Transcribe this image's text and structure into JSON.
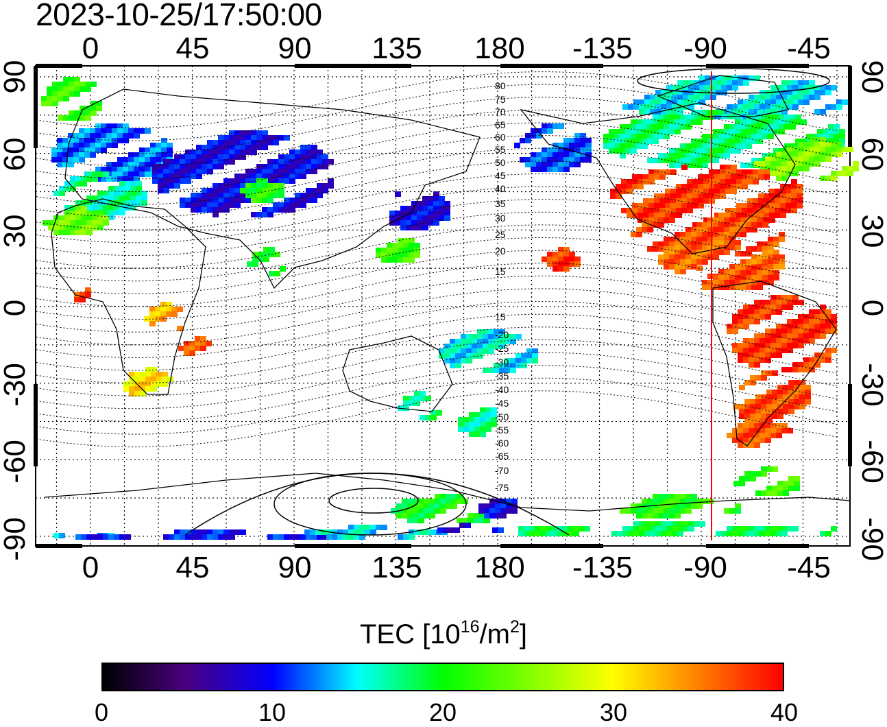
{
  "title": "2023-10-25/17:50:00",
  "map": {
    "top_axis_labels": [
      "0",
      "45",
      "90",
      "135",
      "180",
      "-135",
      "-90",
      "-45"
    ],
    "bottom_axis_labels": [
      "0",
      "45",
      "90",
      "135",
      "180",
      "-135",
      "-90",
      "-45"
    ],
    "left_axis_labels": [
      "90",
      "60",
      "30",
      "0",
      "-30",
      "-60",
      "-90"
    ],
    "right_axis_labels": [
      "90",
      "60",
      "30",
      "0",
      "-30",
      "-60",
      "-90"
    ],
    "contour_labels": [
      "80",
      "75",
      "70",
      "65",
      "60",
      "55",
      "50",
      "45",
      "40",
      "35",
      "30",
      "25",
      "20",
      "15",
      "15",
      "-20",
      "-25",
      "-30",
      "-35",
      "-40",
      "-45",
      "-50",
      "-55",
      "-60",
      "-65",
      "-70",
      "-75"
    ],
    "terminator_longitude": -92,
    "terminator_color": "#ff0000"
  },
  "colorbar": {
    "label_main": "TEC  [10",
    "label_sup1": "16",
    "label_mid": "/m",
    "label_sup2": "2",
    "label_end": "]",
    "min": 0,
    "max": 40,
    "ticks": [
      "0",
      "10",
      "20",
      "30",
      "40"
    ],
    "colors": [
      "#000000",
      "#4b0082",
      "#0000ff",
      "#00ffff",
      "#00ff00",
      "#ffff00",
      "#ff8000",
      "#ff0000"
    ]
  }
}
